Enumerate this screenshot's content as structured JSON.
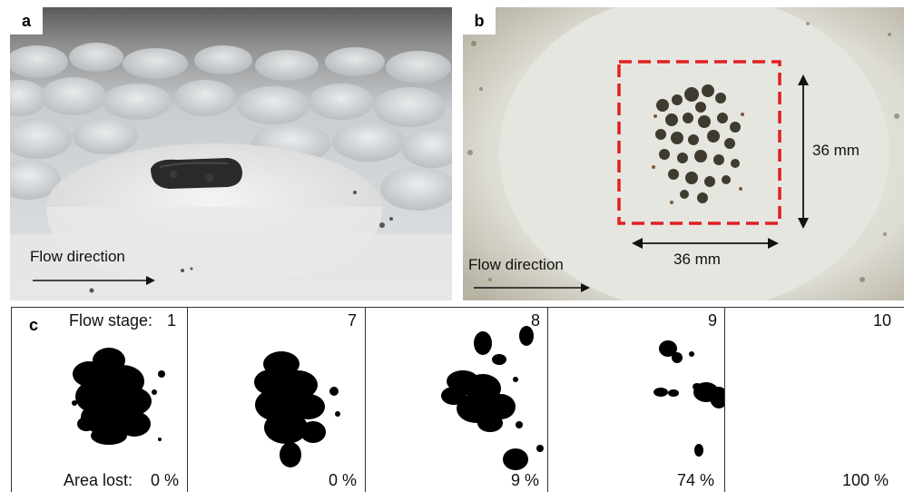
{
  "panel_a": {
    "label": "a",
    "flow_text": "Flow direction"
  },
  "panel_b": {
    "label": "b",
    "flow_text": "Flow direction",
    "dim_vertical": "36 mm",
    "dim_horizontal": "36 mm"
  },
  "panel_c": {
    "label": "c",
    "stage_prefix": "Flow stage: ",
    "area_prefix": "Area lost: ",
    "stages": [
      {
        "stage": "1",
        "area_lost": "0 %"
      },
      {
        "stage": "7",
        "area_lost": "0 %"
      },
      {
        "stage": "8",
        "area_lost": "9 %"
      },
      {
        "stage": "9",
        "area_lost": "74 %"
      },
      {
        "stage": "10",
        "area_lost": "100 %"
      }
    ]
  },
  "colors": {
    "dashed_box": "#e02020",
    "ink": "#000000"
  }
}
